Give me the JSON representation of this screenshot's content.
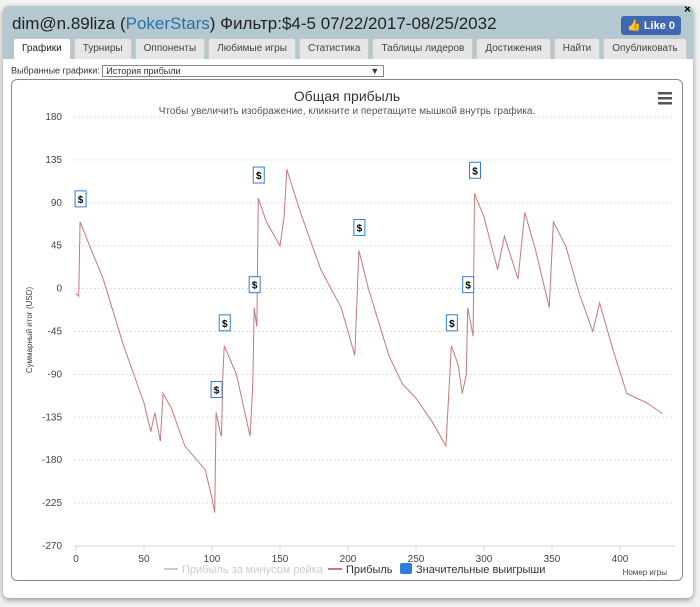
{
  "header": {
    "user": "dim@n.89liza",
    "site": "PokerStars",
    "filter": "Фильтр:$4-5 07/22/2017-08/25/2032",
    "like": "Like 0",
    "close": "×"
  },
  "tabs": [
    "Графики",
    "Турниры",
    "Оппоненты",
    "Любимые игры",
    "Статистика",
    "Таблицы лидеров",
    "Достижения",
    "Найти",
    "Опубликовать"
  ],
  "selector": {
    "label": "Выбранные графики:",
    "value": "История прибыли"
  },
  "colors": {
    "line": "#c87878",
    "marker": "#2f7ed8"
  },
  "chart_data": {
    "type": "line",
    "title": "Общая прибыль",
    "subtitle": "Чтобы увеличить изображение, кликните и перетащите мышкой внутрь графика.",
    "xlabel": "Номер игры",
    "ylabel": "Суммарный итог (USD)",
    "xlim": [
      0,
      440
    ],
    "ylim": [
      -270,
      180
    ],
    "xticks": [
      0,
      50,
      100,
      150,
      200,
      250,
      300,
      350,
      400
    ],
    "yticks": [
      180,
      135,
      90,
      45,
      0,
      -45,
      -90,
      -135,
      -180,
      -225,
      -270
    ],
    "legend": [
      "Прибыль за минусом рейка",
      "Прибыль",
      "Значительные выигрыши"
    ],
    "series": [
      {
        "name": "Прибыль",
        "points": [
          [
            0,
            -5
          ],
          [
            2,
            -8
          ],
          [
            3,
            70
          ],
          [
            10,
            45
          ],
          [
            20,
            10
          ],
          [
            35,
            -60
          ],
          [
            50,
            -120
          ],
          [
            55,
            -150
          ],
          [
            58,
            -130
          ],
          [
            62,
            -160
          ],
          [
            64,
            -110
          ],
          [
            70,
            -125
          ],
          [
            80,
            -165
          ],
          [
            95,
            -190
          ],
          [
            100,
            -220
          ],
          [
            102,
            -235
          ],
          [
            103,
            -130
          ],
          [
            106,
            -150
          ],
          [
            107,
            -155
          ],
          [
            108,
            -90
          ],
          [
            109,
            -60
          ],
          [
            118,
            -90
          ],
          [
            128,
            -155
          ],
          [
            130,
            -100
          ],
          [
            131,
            -20
          ],
          [
            133,
            -40
          ],
          [
            134,
            95
          ],
          [
            140,
            70
          ],
          [
            150,
            45
          ],
          [
            153,
            75
          ],
          [
            155,
            125
          ],
          [
            165,
            80
          ],
          [
            180,
            20
          ],
          [
            195,
            -20
          ],
          [
            205,
            -70
          ],
          [
            208,
            40
          ],
          [
            215,
            0
          ],
          [
            230,
            -70
          ],
          [
            240,
            -100
          ],
          [
            250,
            -115
          ],
          [
            262,
            -140
          ],
          [
            272,
            -165
          ],
          [
            276,
            -60
          ],
          [
            281,
            -80
          ],
          [
            284,
            -110
          ],
          [
            287,
            -90
          ],
          [
            288,
            -20
          ],
          [
            292,
            -50
          ],
          [
            293,
            100
          ],
          [
            300,
            75
          ],
          [
            310,
            20
          ],
          [
            315,
            55
          ],
          [
            325,
            10
          ],
          [
            330,
            80
          ],
          [
            338,
            40
          ],
          [
            348,
            -20
          ],
          [
            351,
            70
          ],
          [
            360,
            45
          ],
          [
            370,
            -5
          ],
          [
            380,
            -45
          ],
          [
            385,
            -15
          ],
          [
            395,
            -65
          ],
          [
            405,
            -110
          ],
          [
            420,
            -120
          ],
          [
            431,
            -131
          ]
        ]
      }
    ],
    "big_wins": [
      [
        3,
        70
      ],
      [
        103,
        -130
      ],
      [
        109,
        -60
      ],
      [
        131,
        -20
      ],
      [
        134,
        95
      ],
      [
        208,
        40
      ],
      [
        276,
        -60
      ],
      [
        288,
        -20
      ],
      [
        293,
        100
      ]
    ],
    "marker_label": "$"
  }
}
